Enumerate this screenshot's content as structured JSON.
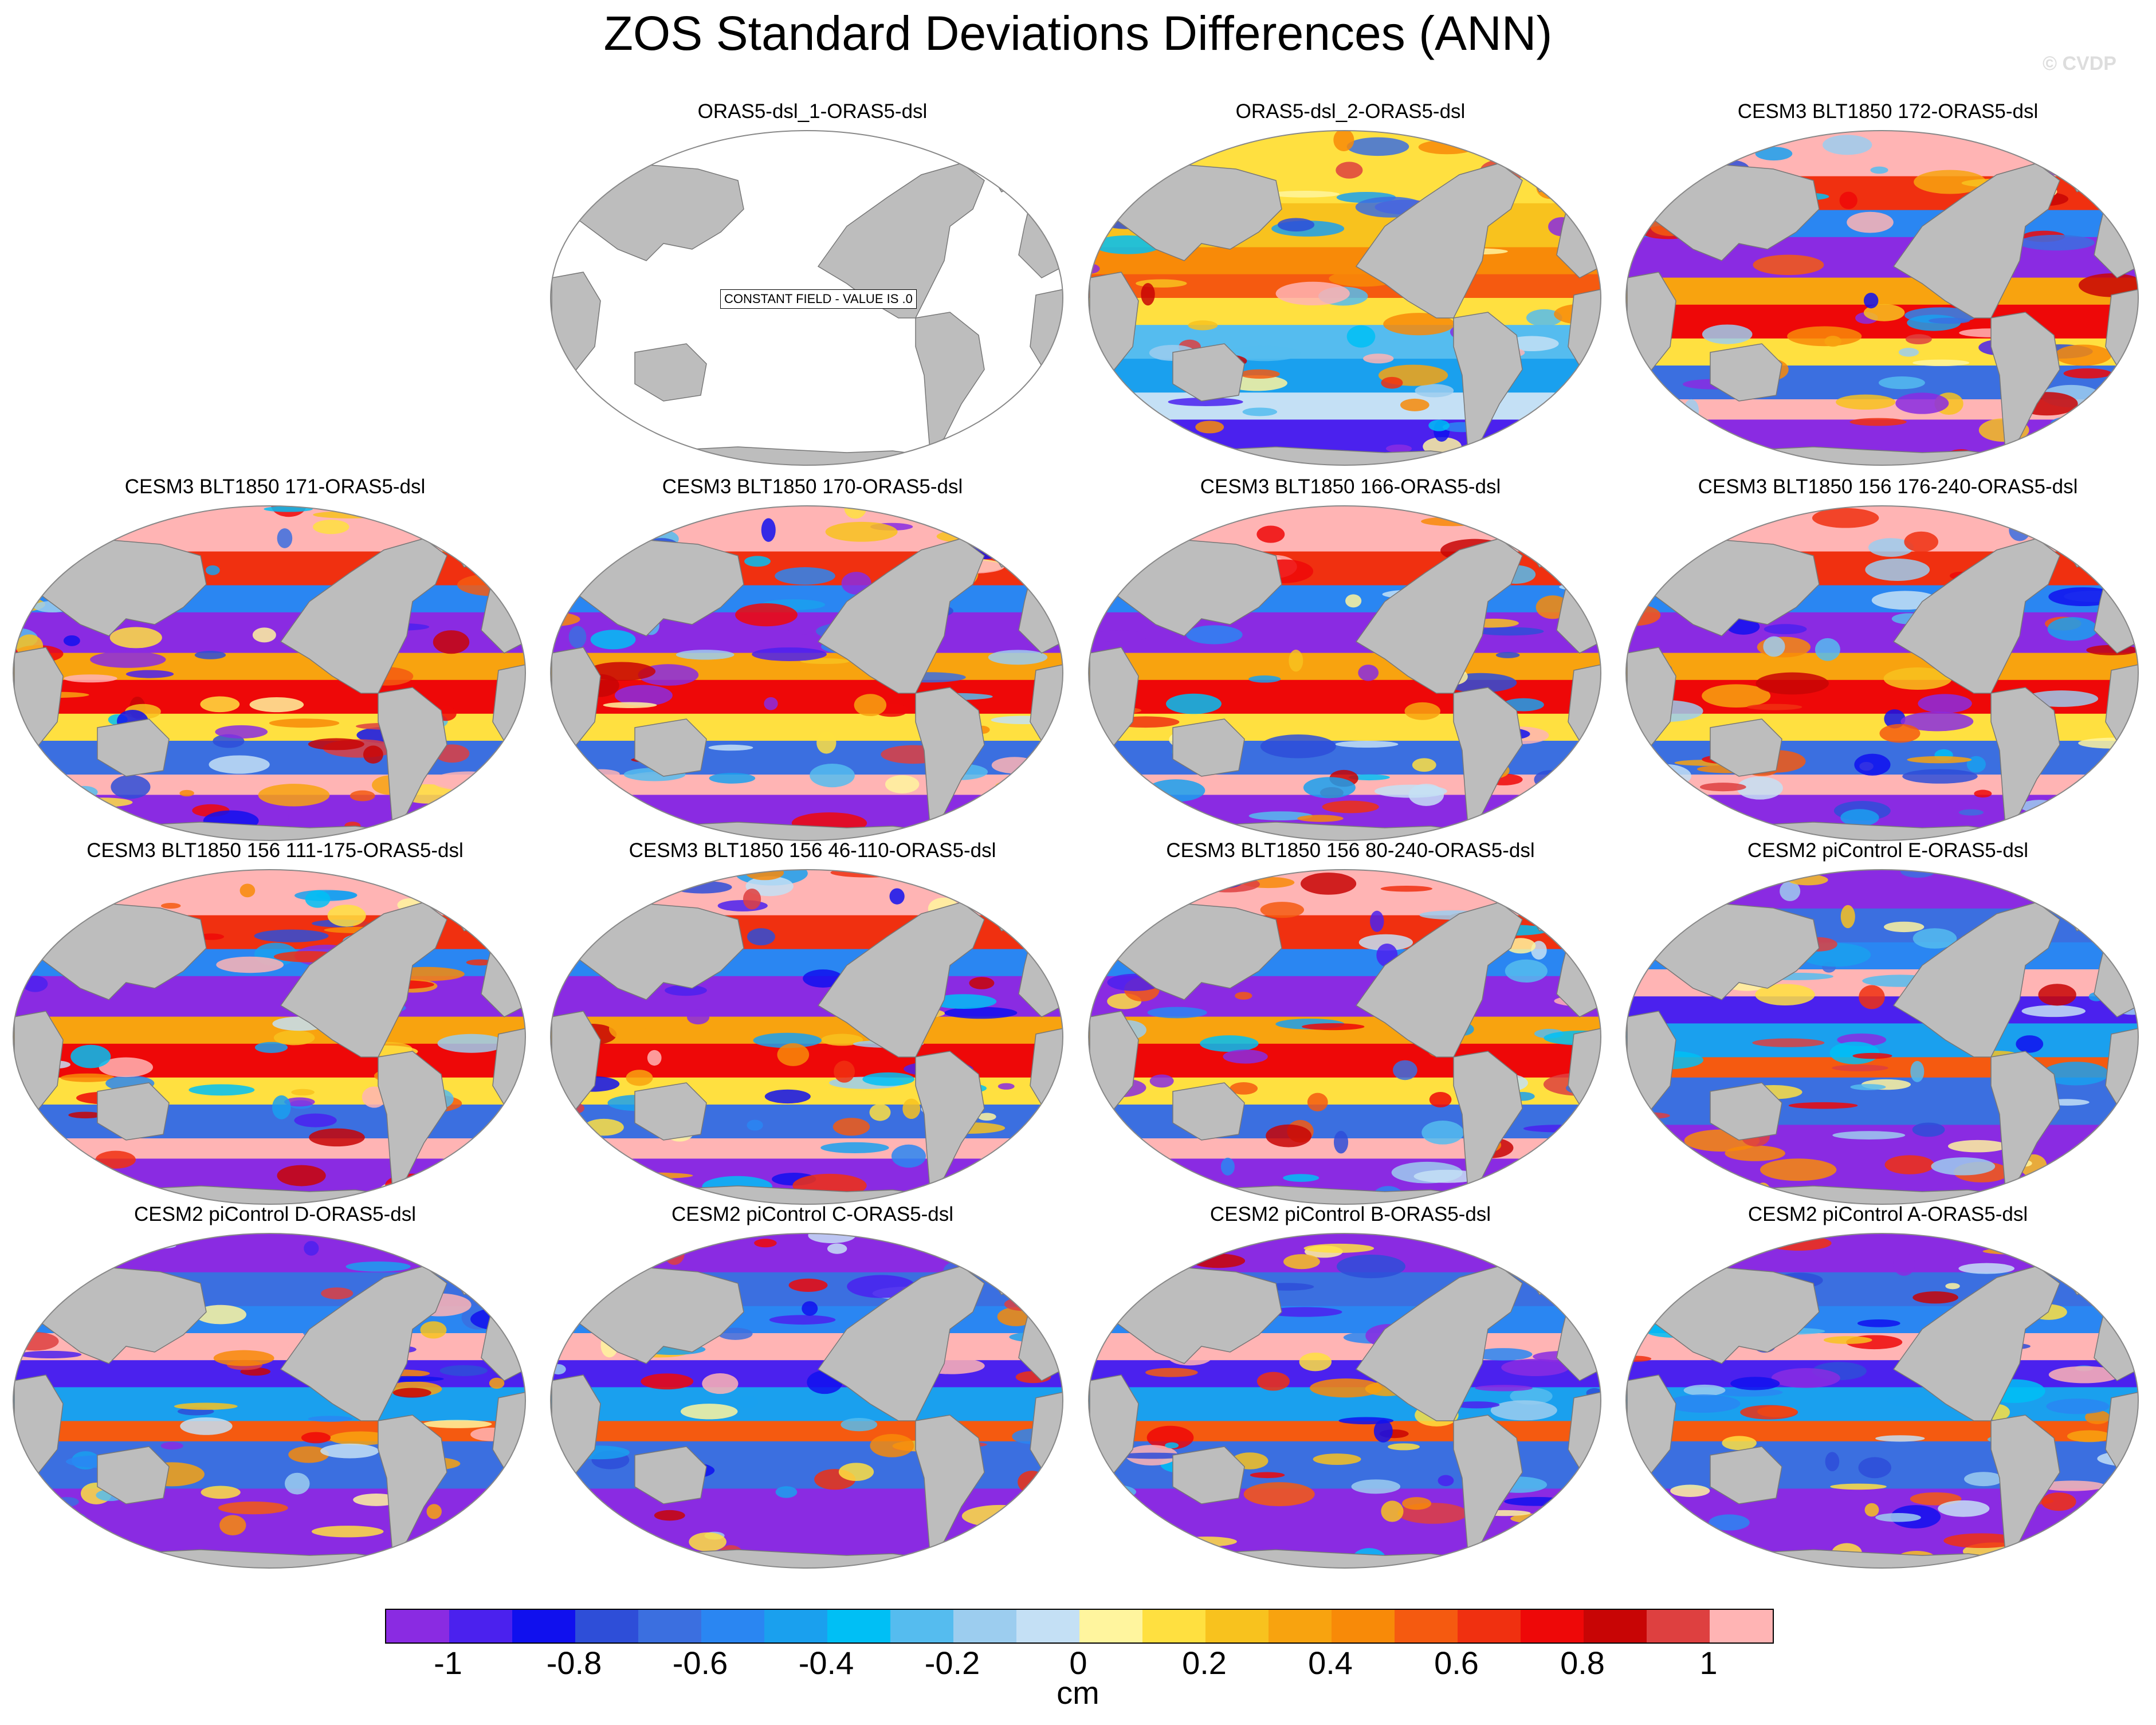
{
  "title": "ZOS Standard Deviations Differences (ANN)",
  "watermark": "© CVDP",
  "constant_field_label": "CONSTANT FIELD - VALUE IS .0",
  "units": "cm",
  "colors": {
    "land": "#bdbdbd",
    "outline": "#888888",
    "ocean_constant": "#ffffff"
  },
  "colorbar": {
    "colors": [
      "#8a2be2",
      "#4b21ee",
      "#1010ee",
      "#2e4ed8",
      "#3b6fe0",
      "#2a86f2",
      "#1aa0ee",
      "#00bff5",
      "#55bcef",
      "#9ccdef",
      "#c4e0f5",
      "#fff59e",
      "#ffe040",
      "#f8c21e",
      "#f8a30f",
      "#f88a08",
      "#f55a10",
      "#f03010",
      "#ee0808",
      "#c80505",
      "#de4040",
      "#ffb4b4"
    ],
    "tick_labels": [
      "-1",
      "-0.8",
      "-0.6",
      "-0.4",
      "-0.2",
      "0",
      "0.2",
      "0.4",
      "0.6",
      "0.8",
      "1"
    ]
  },
  "panels": [
    {
      "title": "ORAS5-dsl_1-ORAS5-dsl",
      "kind": "constant"
    },
    {
      "title": "ORAS5-dsl_2-ORAS5-dsl",
      "kind": "warm-mixed"
    },
    {
      "title": "CESM3 BLT1850 172-ORAS5-dsl",
      "kind": "cesm3"
    },
    {
      "title": "CESM3 BLT1850 171-ORAS5-dsl",
      "kind": "cesm3"
    },
    {
      "title": "CESM3 BLT1850 170-ORAS5-dsl",
      "kind": "cesm3"
    },
    {
      "title": "CESM3 BLT1850 166-ORAS5-dsl",
      "kind": "cesm3"
    },
    {
      "title": "CESM3 BLT1850 156 176-240-ORAS5-dsl",
      "kind": "cesm3"
    },
    {
      "title": "CESM3 BLT1850 156 111-175-ORAS5-dsl",
      "kind": "cesm3"
    },
    {
      "title": "CESM3 BLT1850 156 46-110-ORAS5-dsl",
      "kind": "cesm3"
    },
    {
      "title": "CESM3 BLT1850 156 80-240-ORAS5-dsl",
      "kind": "cesm3"
    },
    {
      "title": "CESM2 piControl E-ORAS5-dsl",
      "kind": "cesm2"
    },
    {
      "title": "CESM2 piControl D-ORAS5-dsl",
      "kind": "cesm2"
    },
    {
      "title": "CESM2 piControl C-ORAS5-dsl",
      "kind": "cesm2"
    },
    {
      "title": "CESM2 piControl B-ORAS5-dsl",
      "kind": "cesm2"
    },
    {
      "title": "CESM2 piControl A-ORAS5-dsl",
      "kind": "cesm2"
    }
  ]
}
